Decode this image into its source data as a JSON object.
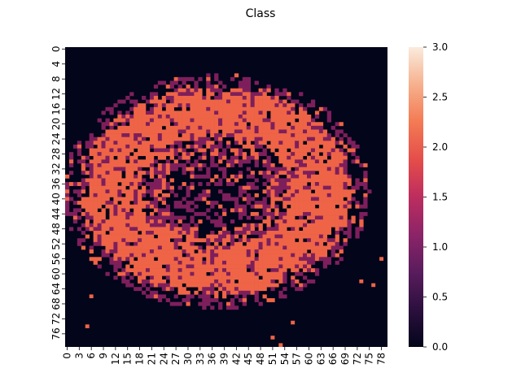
{
  "chart_data": {
    "type": "heatmap",
    "title": "Class",
    "xlabel": "",
    "ylabel": "",
    "rows": 80,
    "cols": 80,
    "x_ticks": [
      "0",
      "3",
      "6",
      "9",
      "12",
      "15",
      "18",
      "21",
      "24",
      "27",
      "30",
      "33",
      "36",
      "39",
      "42",
      "45",
      "48",
      "51",
      "54",
      "57",
      "60",
      "63",
      "66",
      "69",
      "72",
      "75",
      "78"
    ],
    "y_ticks": [
      "0",
      "4",
      "8",
      "12",
      "16",
      "20",
      "24",
      "28",
      "32",
      "36",
      "40",
      "44",
      "48",
      "52",
      "56",
      "60",
      "64",
      "68",
      "72",
      "76"
    ],
    "colorbar": {
      "min": 0.0,
      "max": 3.0,
      "ticks": [
        "0.0",
        "0.5",
        "1.0",
        "1.5",
        "2.0",
        "2.5",
        "3.0"
      ]
    },
    "classes": [
      0,
      1,
      2,
      3
    ],
    "colors": [
      "#03051a",
      "#7e1f5c",
      "#ef6446",
      "#faebdd"
    ],
    "grid": false,
    "legend": "colorbar-right",
    "description_of_values": "Discrete class map: background 0 outside; elliptical ring of class 2 roughly centered at column 37, row 38; interior mix of class 0 and class 1; border fringe of class 1; a few isolated class-2 pixels near (6,66),(5,74),(56,73),(79,53),(77,51),(78,56)."
  }
}
